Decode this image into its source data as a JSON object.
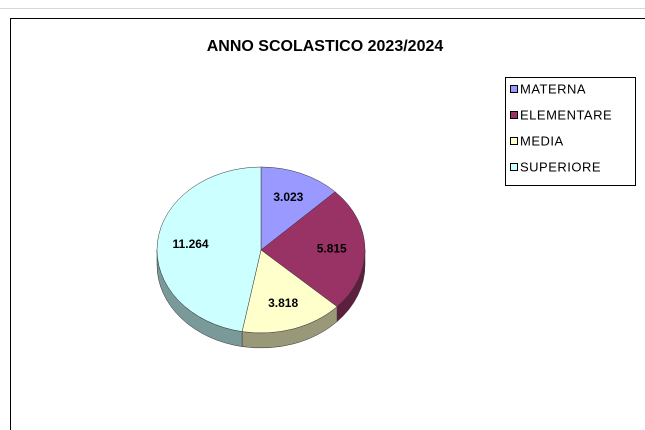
{
  "chart_data": {
    "type": "pie",
    "title": "ANNO SCOLASTICO 2023/2024",
    "categories": [
      "MATERNA",
      "ELEMENTARE",
      "MEDIA",
      "SUPERIORE"
    ],
    "values": [
      3023,
      5815,
      3818,
      11264
    ],
    "value_labels": [
      "3.023",
      "5.815",
      "3.818",
      "11.264"
    ],
    "colors": [
      "#9999ff",
      "#993366",
      "#ffffcc",
      "#ccffff"
    ],
    "legend": "right"
  }
}
